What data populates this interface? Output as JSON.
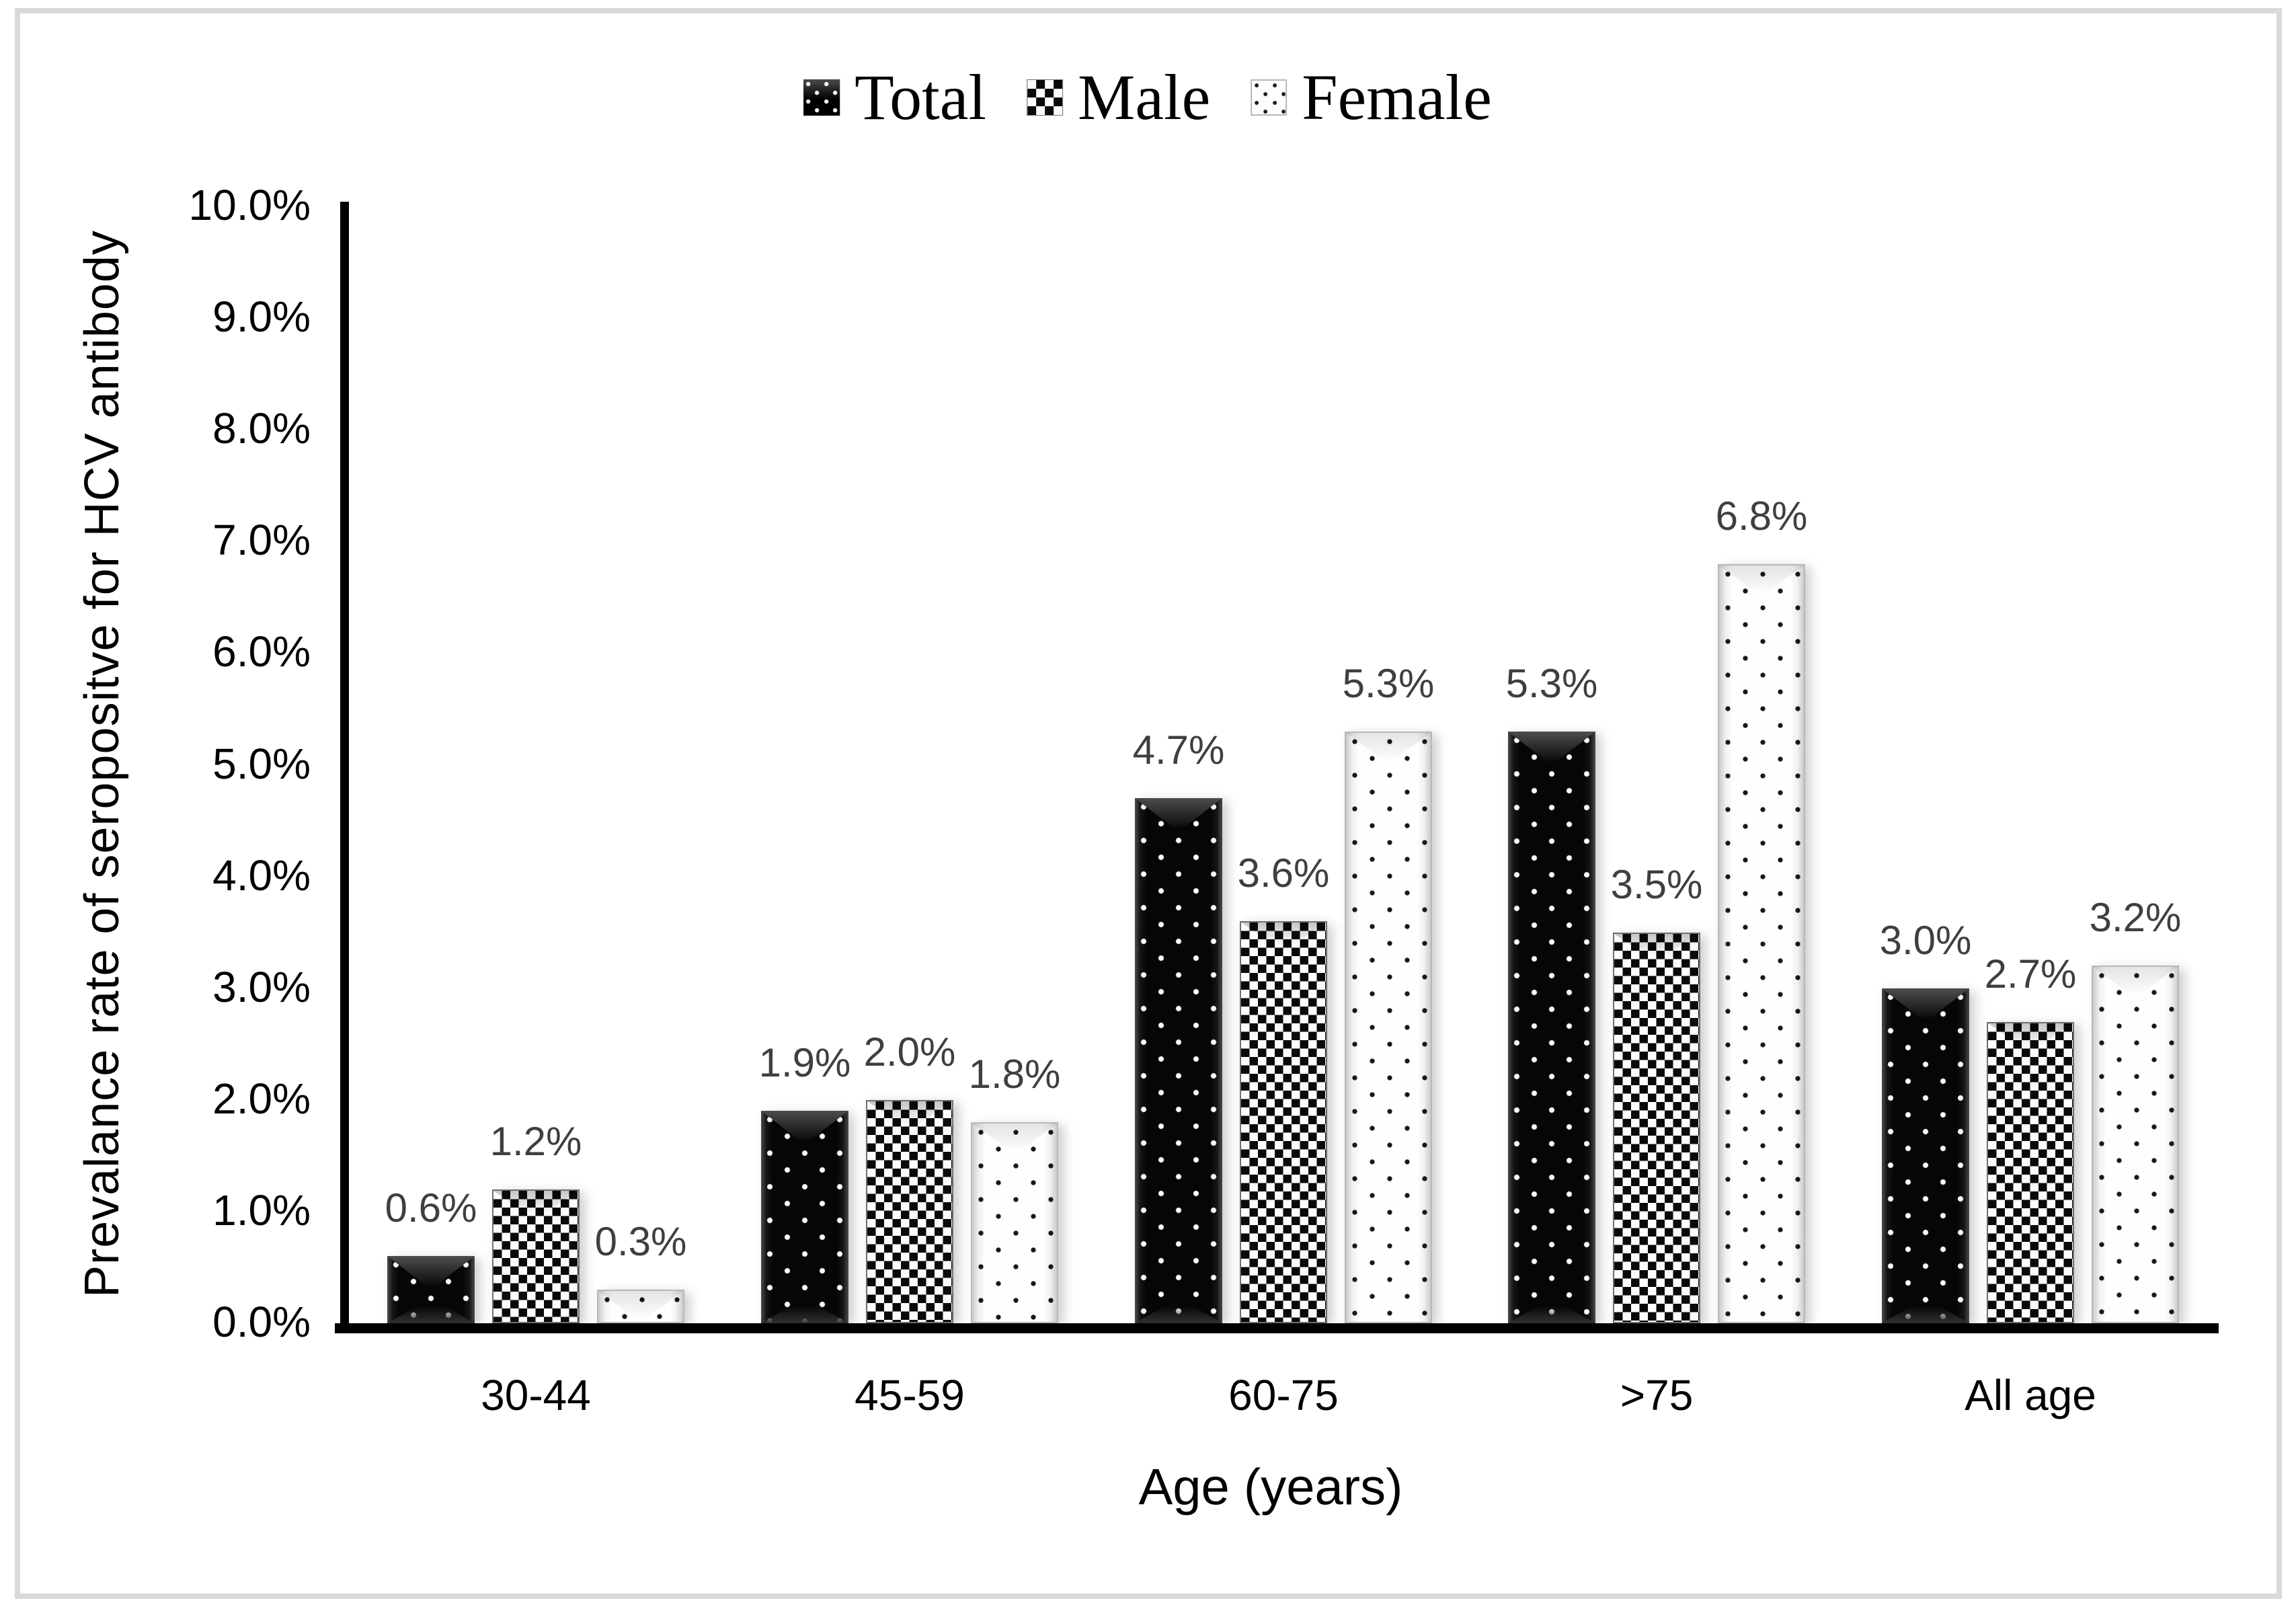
{
  "chart_data": {
    "type": "bar",
    "title": "",
    "categories": [
      "30-44",
      "45-59",
      "60-75",
      ">75",
      "All age"
    ],
    "series": [
      {
        "name": "Total",
        "pattern": "black-with-white-dots-beveled",
        "values": [
          0.6,
          1.9,
          4.7,
          5.3,
          3.0
        ],
        "data_labels": [
          "0.6%",
          "1.9%",
          "4.7%",
          "5.3%",
          "3.0%"
        ]
      },
      {
        "name": "Male",
        "pattern": "black-white-checkerboard",
        "values": [
          1.2,
          2.0,
          3.6,
          3.5,
          2.7
        ],
        "data_labels": [
          "1.2%",
          "2.0%",
          "3.6%",
          "3.5%",
          "2.7%"
        ]
      },
      {
        "name": "Female",
        "pattern": "white-with-black-dots",
        "values": [
          0.3,
          1.8,
          5.3,
          6.8,
          3.2
        ],
        "data_labels": [
          "0.3%",
          "1.8%",
          "5.3%",
          "6.8%",
          "3.2%"
        ]
      }
    ],
    "xlabel": "Age (years)",
    "ylabel": "Prevalance rate of seropositve for HCV antibody",
    "ylim": [
      0,
      10
    ],
    "ytick_step": 1,
    "ytick_labels": [
      "10.0%",
      "9.0%",
      "8.0%",
      "7.0%",
      "6.0%",
      "5.0%",
      "4.0%",
      "3.0%",
      "2.0%",
      "1.0%",
      "0.0%"
    ],
    "grid": false,
    "legend_position": "top-center",
    "colors": {
      "data_label": "#3f3f3f",
      "axis_line": "#000000",
      "figure_border": "#d9d9d9",
      "bar_dark": "#060606",
      "bar_light": "#fefefe"
    }
  }
}
